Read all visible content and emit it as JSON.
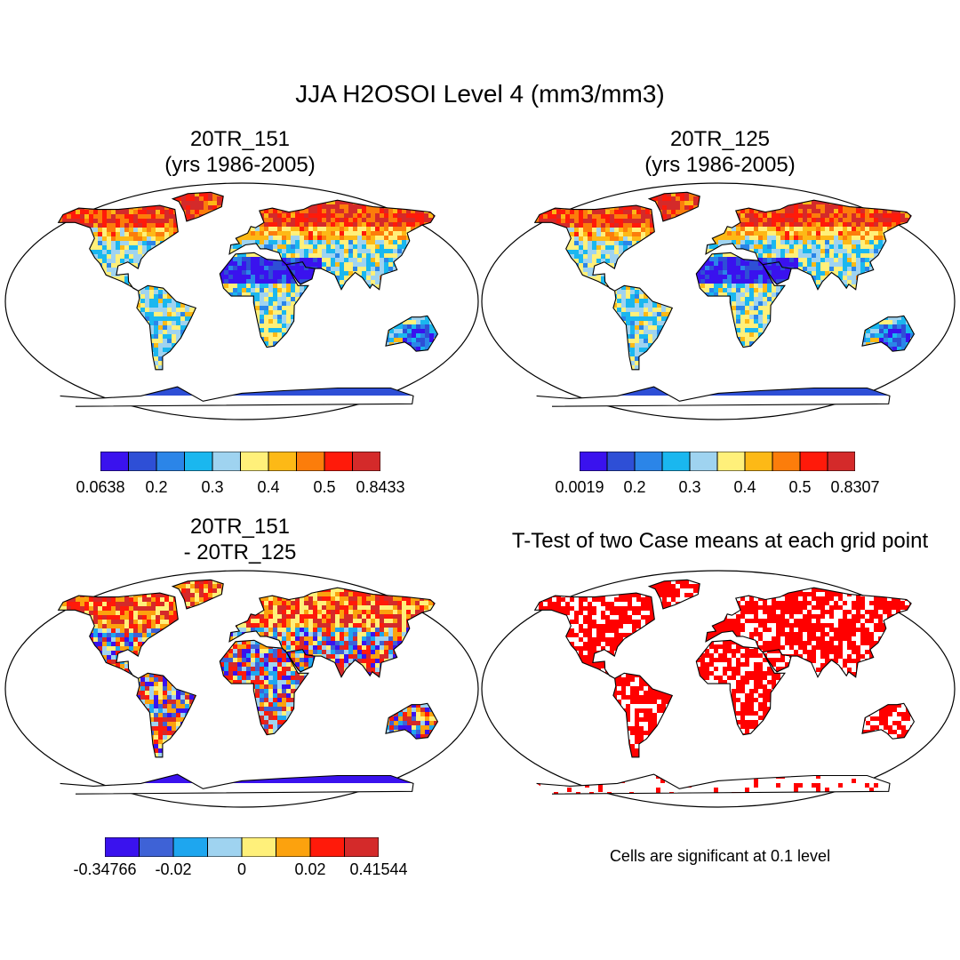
{
  "figure": {
    "title": "JJA H2OSOI Level 4 (mm3/mm3)"
  },
  "panels": [
    {
      "id": "case1",
      "title_line1": "20TR_151",
      "title_line2": "(yrs 1986-2005)",
      "colorbar": {
        "colors": [
          "#3a12ee",
          "#2e4fd6",
          "#2b85e8",
          "#1ab7ef",
          "#9fd3f0",
          "#fff07a",
          "#fdb916",
          "#fc7d0b",
          "#ff1a0a",
          "#d42a2a"
        ],
        "labels": [
          "0.0638",
          "0.2",
          "0.3",
          "0.4",
          "0.5",
          "0.8433"
        ]
      }
    },
    {
      "id": "case2",
      "title_line1": "20TR_125",
      "title_line2": "(yrs 1986-2005)",
      "colorbar": {
        "colors": [
          "#3a12ee",
          "#2e4fd6",
          "#2b85e8",
          "#1ab7ef",
          "#9fd3f0",
          "#fff07a",
          "#fdb916",
          "#fc7d0b",
          "#ff1a0a",
          "#d42a2a"
        ],
        "labels": [
          "0.0019",
          "0.2",
          "0.3",
          "0.4",
          "0.5",
          "0.8307"
        ]
      }
    },
    {
      "id": "difference",
      "title_line1": "20TR_151",
      "title_line2": "- 20TR_125",
      "colorbar": {
        "colors": [
          "#3a12ee",
          "#3e62d6",
          "#1ea6ef",
          "#9fd3f0",
          "#fff07a",
          "#fca20e",
          "#ff1a0a",
          "#d42a2a"
        ],
        "labels": [
          "-0.34766",
          "-0.02",
          "0",
          "0.02",
          "0.41544"
        ]
      }
    },
    {
      "id": "ttest",
      "title_line1": "T-Test of two Case means at each grid point",
      "note": "Cells are significant at 0.1 level",
      "significant_color": "#ff0000"
    }
  ]
}
